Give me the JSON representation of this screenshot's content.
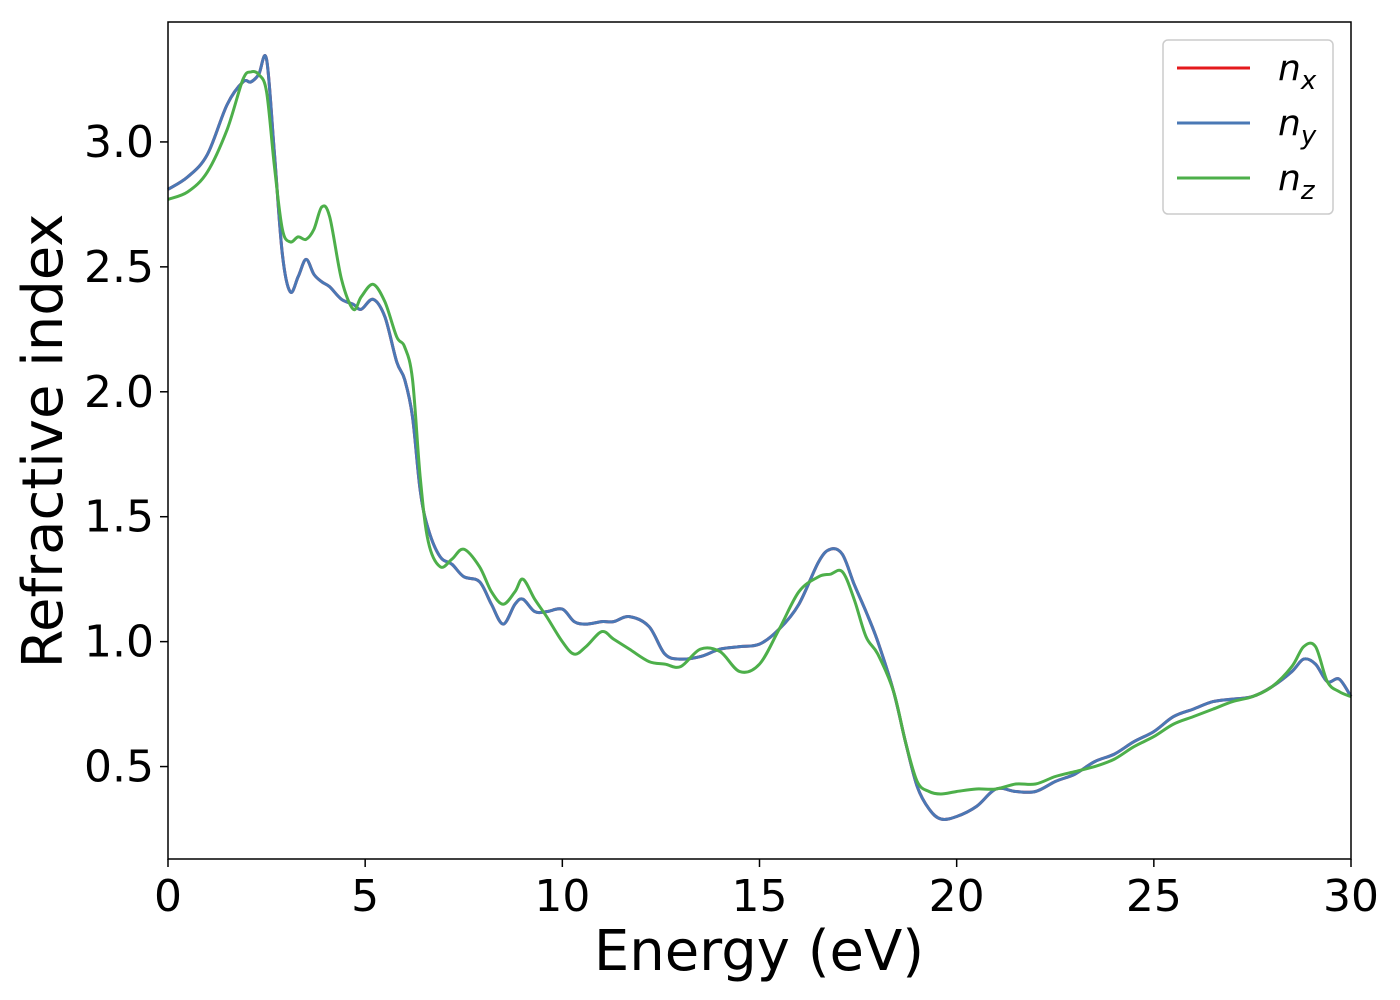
{
  "chart_data": {
    "type": "line",
    "title": "",
    "xlabel": "Energy (eV)",
    "ylabel": "Refractive index",
    "xlim": [
      0,
      30
    ],
    "ylim": [
      0.13,
      3.48
    ],
    "xticks": [
      0,
      5,
      10,
      15,
      20,
      25,
      30
    ],
    "yticks": [
      0.5,
      1.0,
      1.5,
      2.0,
      2.5,
      3.0
    ],
    "xtick_labels": [
      "0",
      "5",
      "10",
      "15",
      "20",
      "25",
      "30"
    ],
    "ytick_labels": [
      "0.5",
      "1.0",
      "1.5",
      "2.0",
      "2.5",
      "3.0"
    ],
    "grid": false,
    "legend_position": "top-right",
    "series": [
      {
        "name": "n",
        "subscript": "x",
        "color": "#e41a1c",
        "x": [
          0,
          0.5,
          1.0,
          1.5,
          1.9,
          2.1,
          2.3,
          2.5,
          2.7,
          2.9,
          3.1,
          3.3,
          3.5,
          3.7,
          3.9,
          4.1,
          4.4,
          4.7,
          4.9,
          5.2,
          5.5,
          5.8,
          6.0,
          6.2,
          6.4,
          6.6,
          6.9,
          7.2,
          7.5,
          7.9,
          8.2,
          8.5,
          8.8,
          9.0,
          9.3,
          9.6,
          10.0,
          10.3,
          10.6,
          11.0,
          11.3,
          11.7,
          12.2,
          12.6,
          13.0,
          13.5,
          14.0,
          14.5,
          15.0,
          15.5,
          16.0,
          16.5,
          16.8,
          17.1,
          17.4,
          17.7,
          18.0,
          18.4,
          18.7,
          19.0,
          19.3,
          19.6,
          20.0,
          20.5,
          21.0,
          21.5,
          22.0,
          22.5,
          23.0,
          23.5,
          24.0,
          24.5,
          25.0,
          25.5,
          26.0,
          26.5,
          27.0,
          27.5,
          28.0,
          28.5,
          28.8,
          29.1,
          29.4,
          29.7,
          30.0
        ],
        "y": [
          2.81,
          2.86,
          2.95,
          3.15,
          3.24,
          3.24,
          3.27,
          3.33,
          2.95,
          2.55,
          2.4,
          2.46,
          2.53,
          2.47,
          2.44,
          2.42,
          2.37,
          2.35,
          2.33,
          2.37,
          2.3,
          2.12,
          2.05,
          1.9,
          1.6,
          1.45,
          1.34,
          1.31,
          1.26,
          1.24,
          1.15,
          1.07,
          1.15,
          1.17,
          1.12,
          1.12,
          1.13,
          1.08,
          1.07,
          1.08,
          1.08,
          1.1,
          1.06,
          0.95,
          0.93,
          0.94,
          0.97,
          0.98,
          0.99,
          1.05,
          1.15,
          1.32,
          1.37,
          1.35,
          1.23,
          1.12,
          1.0,
          0.8,
          0.6,
          0.42,
          0.33,
          0.29,
          0.3,
          0.34,
          0.41,
          0.4,
          0.4,
          0.44,
          0.47,
          0.52,
          0.55,
          0.6,
          0.64,
          0.7,
          0.73,
          0.76,
          0.77,
          0.78,
          0.82,
          0.88,
          0.93,
          0.91,
          0.84,
          0.85,
          0.78
        ]
      },
      {
        "name": "n",
        "subscript": "y",
        "color": "#4a78b5",
        "x": [
          0,
          0.5,
          1.0,
          1.5,
          1.9,
          2.1,
          2.3,
          2.5,
          2.7,
          2.9,
          3.1,
          3.3,
          3.5,
          3.7,
          3.9,
          4.1,
          4.4,
          4.7,
          4.9,
          5.2,
          5.5,
          5.8,
          6.0,
          6.2,
          6.4,
          6.6,
          6.9,
          7.2,
          7.5,
          7.9,
          8.2,
          8.5,
          8.8,
          9.0,
          9.3,
          9.6,
          10.0,
          10.3,
          10.6,
          11.0,
          11.3,
          11.7,
          12.2,
          12.6,
          13.0,
          13.5,
          14.0,
          14.5,
          15.0,
          15.5,
          16.0,
          16.5,
          16.8,
          17.1,
          17.4,
          17.7,
          18.0,
          18.4,
          18.7,
          19.0,
          19.3,
          19.6,
          20.0,
          20.5,
          21.0,
          21.5,
          22.0,
          22.5,
          23.0,
          23.5,
          24.0,
          24.5,
          25.0,
          25.5,
          26.0,
          26.5,
          27.0,
          27.5,
          28.0,
          28.5,
          28.8,
          29.1,
          29.4,
          29.7,
          30.0
        ],
        "y": [
          2.81,
          2.86,
          2.95,
          3.15,
          3.24,
          3.24,
          3.27,
          3.33,
          2.95,
          2.55,
          2.4,
          2.46,
          2.53,
          2.47,
          2.44,
          2.42,
          2.37,
          2.35,
          2.33,
          2.37,
          2.3,
          2.12,
          2.05,
          1.9,
          1.6,
          1.45,
          1.34,
          1.31,
          1.26,
          1.24,
          1.15,
          1.07,
          1.15,
          1.17,
          1.12,
          1.12,
          1.13,
          1.08,
          1.07,
          1.08,
          1.08,
          1.1,
          1.06,
          0.95,
          0.93,
          0.94,
          0.97,
          0.98,
          0.99,
          1.05,
          1.15,
          1.32,
          1.37,
          1.35,
          1.23,
          1.12,
          1.0,
          0.8,
          0.6,
          0.42,
          0.33,
          0.29,
          0.3,
          0.34,
          0.41,
          0.4,
          0.4,
          0.44,
          0.47,
          0.52,
          0.55,
          0.6,
          0.64,
          0.7,
          0.73,
          0.76,
          0.77,
          0.78,
          0.82,
          0.88,
          0.93,
          0.91,
          0.84,
          0.85,
          0.78
        ]
      },
      {
        "name": "n",
        "subscript": "z",
        "color": "#4daf4a",
        "x": [
          0,
          0.5,
          1.0,
          1.5,
          1.9,
          2.1,
          2.3,
          2.5,
          2.7,
          2.9,
          3.1,
          3.3,
          3.5,
          3.7,
          3.9,
          4.1,
          4.4,
          4.7,
          4.9,
          5.2,
          5.5,
          5.8,
          6.0,
          6.2,
          6.4,
          6.6,
          6.9,
          7.2,
          7.5,
          7.9,
          8.2,
          8.5,
          8.8,
          9.0,
          9.3,
          9.6,
          10.0,
          10.3,
          10.6,
          11.0,
          11.3,
          11.7,
          12.2,
          12.6,
          13.0,
          13.5,
          14.0,
          14.5,
          15.0,
          15.5,
          16.0,
          16.5,
          16.8,
          17.1,
          17.4,
          17.7,
          18.0,
          18.4,
          18.7,
          19.0,
          19.3,
          19.6,
          20.0,
          20.5,
          21.0,
          21.5,
          22.0,
          22.5,
          23.0,
          23.5,
          24.0,
          24.5,
          25.0,
          25.5,
          26.0,
          26.5,
          27.0,
          27.5,
          28.0,
          28.5,
          28.8,
          29.1,
          29.4,
          29.7,
          30.0
        ],
        "y": [
          2.77,
          2.8,
          2.88,
          3.05,
          3.25,
          3.28,
          3.27,
          3.2,
          2.9,
          2.65,
          2.6,
          2.62,
          2.61,
          2.65,
          2.74,
          2.7,
          2.45,
          2.33,
          2.38,
          2.43,
          2.36,
          2.22,
          2.18,
          2.05,
          1.65,
          1.4,
          1.3,
          1.33,
          1.37,
          1.3,
          1.2,
          1.15,
          1.2,
          1.25,
          1.17,
          1.1,
          1.0,
          0.95,
          0.98,
          1.04,
          1.01,
          0.97,
          0.92,
          0.91,
          0.9,
          0.97,
          0.96,
          0.88,
          0.91,
          1.05,
          1.2,
          1.26,
          1.27,
          1.28,
          1.17,
          1.02,
          0.95,
          0.8,
          0.6,
          0.44,
          0.4,
          0.39,
          0.4,
          0.41,
          0.41,
          0.43,
          0.43,
          0.46,
          0.48,
          0.5,
          0.53,
          0.58,
          0.62,
          0.67,
          0.7,
          0.73,
          0.76,
          0.78,
          0.82,
          0.9,
          0.98,
          0.98,
          0.84,
          0.8,
          0.78
        ]
      }
    ]
  }
}
